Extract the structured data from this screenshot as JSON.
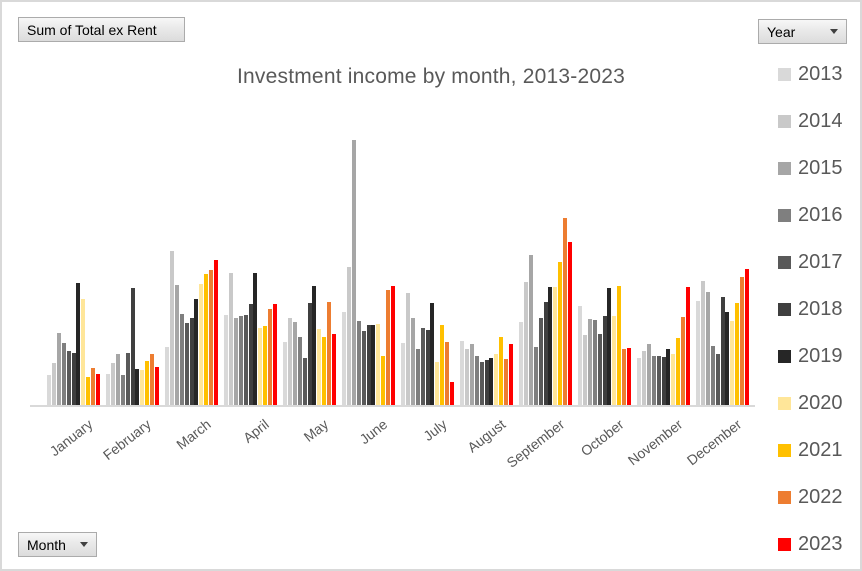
{
  "buttons": {
    "value_field": "Sum of Total ex Rent",
    "year_field": "Year",
    "month_field": "Month"
  },
  "title": "Investment income by month, 2013-2023",
  "chart_data": {
    "type": "bar",
    "title": "Investment income by month, 2013-2023",
    "categories": [
      "January",
      "February",
      "March",
      "April",
      "May",
      "June",
      "July",
      "August",
      "September",
      "October",
      "November",
      "December"
    ],
    "series": [
      {
        "name": "2013",
        "color": "#d9d9d9",
        "values": [
          30,
          31,
          58,
          90,
          63,
          93,
          62,
          64,
          83,
          99,
          47,
          104
        ]
      },
      {
        "name": "2014",
        "color": "#c9c9c9",
        "values": [
          42,
          42,
          154,
          132,
          87,
          138,
          112,
          56,
          123,
          70,
          54,
          124
        ]
      },
      {
        "name": "2015",
        "color": "#a6a6a6",
        "values": [
          72,
          51,
          120,
          87,
          83,
          265,
          87,
          61,
          150,
          86,
          61,
          113
        ]
      },
      {
        "name": "2016",
        "color": "#7f7f7f",
        "values": [
          62,
          30,
          91,
          89,
          68,
          84,
          56,
          49,
          58,
          85,
          49,
          59
        ]
      },
      {
        "name": "2017",
        "color": "#595959",
        "values": [
          54,
          52,
          82,
          90,
          47,
          74,
          77,
          43,
          87,
          71,
          49,
          51
        ]
      },
      {
        "name": "2018",
        "color": "#3f3f3f",
        "values": [
          52,
          117,
          87,
          101,
          102,
          80,
          75,
          45,
          103,
          89,
          48,
          108
        ]
      },
      {
        "name": "2019",
        "color": "#262626",
        "values": [
          122,
          36,
          106,
          132,
          119,
          80,
          102,
          47,
          118,
          117,
          56,
          93
        ]
      },
      {
        "name": "2020",
        "color": "#ffe699",
        "values": [
          106,
          35,
          121,
          77,
          76,
          81,
          43,
          51,
          118,
          89,
          51,
          84
        ]
      },
      {
        "name": "2021",
        "color": "#ffc000",
        "values": [
          28,
          44,
          131,
          79,
          68,
          49,
          80,
          68,
          143,
          119,
          67,
          102
        ]
      },
      {
        "name": "2022",
        "color": "#ed7d31",
        "values": [
          37,
          51,
          135,
          96,
          103,
          115,
          63,
          46,
          187,
          56,
          88,
          128
        ]
      },
      {
        "name": "2023",
        "color": "#ff0000",
        "values": [
          31,
          38,
          145,
          101,
          71,
          119,
          23,
          61,
          163,
          57,
          118,
          136
        ]
      }
    ],
    "legend_position": "right",
    "value_axis_visible": false,
    "units": "relative bar height (no value axis shown)",
    "grid": false
  }
}
